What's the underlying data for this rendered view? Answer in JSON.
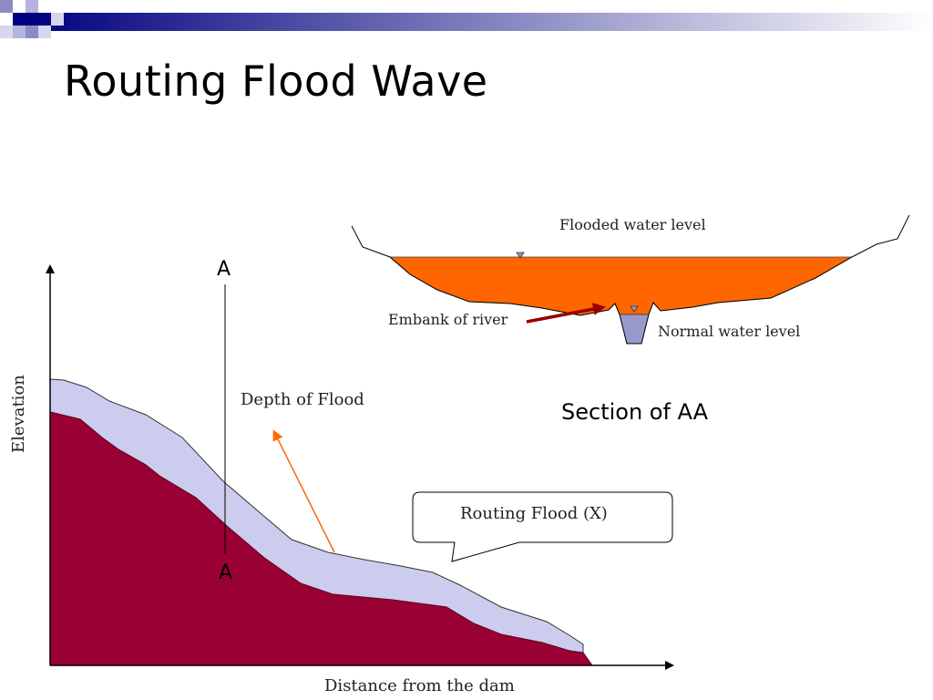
{
  "slide": {
    "title": "Routing Flood Wave"
  },
  "profile": {
    "y_axis_label": "Elevation",
    "x_axis_label": "Distance from the dam",
    "section_marker_top": "A",
    "section_marker_bottom": "A",
    "depth_label": "Depth of Flood",
    "callout_label": "Routing Flood (X)"
  },
  "cross_section": {
    "flooded_level_label": "Flooded water level",
    "embankment_label": "Embank of river",
    "normal_level_label": "Normal water level",
    "caption": "Section of AA"
  },
  "colors": {
    "terrain": "#990033",
    "flood_layer": "#ccccee",
    "flood_water": "#ff6600",
    "river_water": "#9999cc",
    "embank_arrow": "#990000",
    "depth_arrow": "#ff6600",
    "decor_navy": "#000080"
  }
}
